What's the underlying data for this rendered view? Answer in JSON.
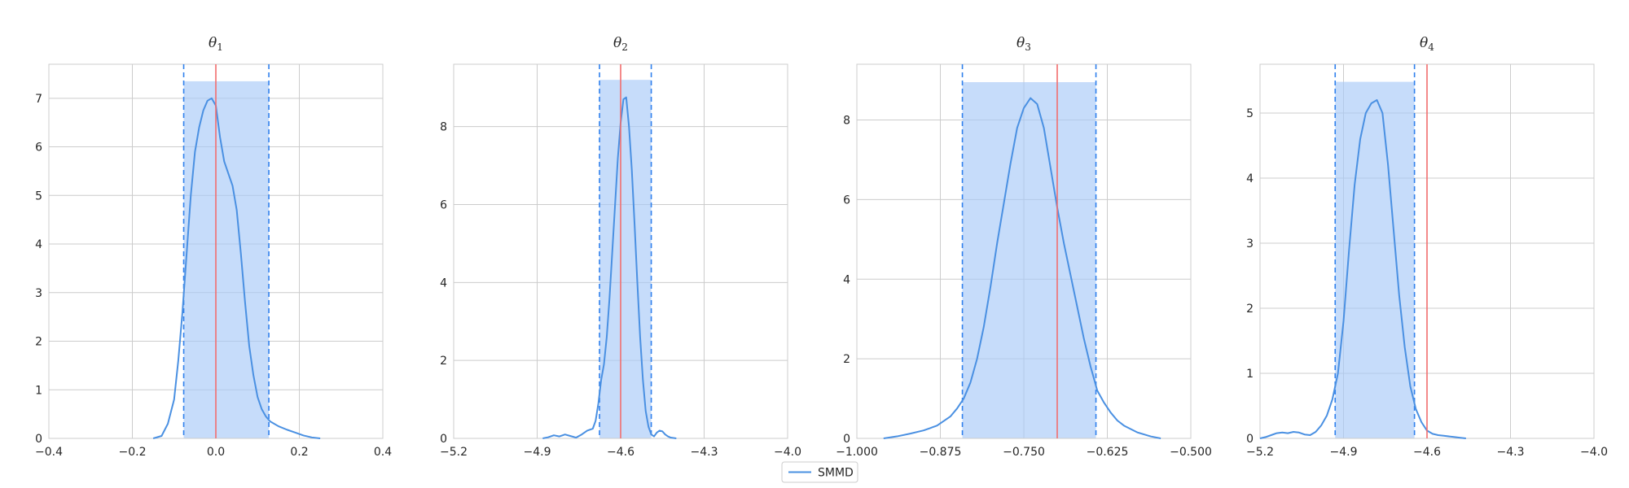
{
  "colors": {
    "kde": "#4a90e2",
    "interval_fill": "#a8c9f7",
    "interval_line": "#2f80ed",
    "truth": "#f26d6d",
    "grid": "#cccccc",
    "frame": "#cccccc"
  },
  "legend": {
    "label": "SMMD",
    "placement": "lower-center"
  },
  "chart_data": [
    {
      "type": "line",
      "title": "θ1",
      "title_var": "θ",
      "title_sub": "1",
      "xlim": [
        -0.4,
        0.4
      ],
      "ylim": [
        0,
        7.7
      ],
      "xticks": [
        -0.4,
        -0.2,
        0.0,
        0.2,
        0.4
      ],
      "xtick_labels": [
        "−0.4",
        "−0.2",
        "0.0",
        "0.2",
        "0.4"
      ],
      "yticks": [
        0,
        1,
        2,
        3,
        4,
        5,
        6,
        7
      ],
      "ytick_labels": [
        "0",
        "1",
        "2",
        "3",
        "4",
        "5",
        "6",
        "7"
      ],
      "grid": true,
      "interval": [
        -0.077,
        0.127
      ],
      "interval_height": 7.35,
      "true_value": 0.0,
      "series": [
        {
          "name": "SMMD",
          "x": [
            -0.15,
            -0.13,
            -0.115,
            -0.1,
            -0.09,
            -0.08,
            -0.07,
            -0.06,
            -0.05,
            -0.04,
            -0.03,
            -0.02,
            -0.01,
            0.0,
            0.01,
            0.02,
            0.03,
            0.04,
            0.05,
            0.06,
            0.07,
            0.08,
            0.09,
            0.1,
            0.11,
            0.12,
            0.13,
            0.15,
            0.17,
            0.19,
            0.21,
            0.23,
            0.25
          ],
          "y": [
            0.0,
            0.05,
            0.3,
            0.8,
            1.6,
            2.6,
            3.8,
            5.0,
            5.9,
            6.4,
            6.75,
            6.95,
            7.0,
            6.85,
            6.2,
            5.7,
            5.45,
            5.2,
            4.7,
            3.8,
            2.8,
            1.9,
            1.3,
            0.85,
            0.6,
            0.45,
            0.35,
            0.25,
            0.18,
            0.12,
            0.06,
            0.02,
            0.0
          ]
        }
      ]
    },
    {
      "type": "line",
      "title": "θ2",
      "title_var": "θ",
      "title_sub": "2",
      "xlim": [
        -5.2,
        -4.0
      ],
      "ylim": [
        0,
        9.6
      ],
      "xticks": [
        -5.2,
        -4.9,
        -4.6,
        -4.3,
        -4.0
      ],
      "xtick_labels": [
        "−5.2",
        "−4.9",
        "−4.6",
        "−4.3",
        "−4.0"
      ],
      "yticks": [
        0,
        2,
        4,
        6,
        8
      ],
      "ytick_labels": [
        "0",
        "2",
        "4",
        "6",
        "8"
      ],
      "grid": true,
      "interval": [
        -4.676,
        -4.49
      ],
      "interval_height": 9.2,
      "true_value": -4.6,
      "series": [
        {
          "name": "SMMD",
          "x": [
            -4.88,
            -4.86,
            -4.84,
            -4.82,
            -4.8,
            -4.78,
            -4.76,
            -4.74,
            -4.72,
            -4.7,
            -4.69,
            -4.68,
            -4.67,
            -4.66,
            -4.65,
            -4.64,
            -4.63,
            -4.62,
            -4.61,
            -4.6,
            -4.59,
            -4.58,
            -4.57,
            -4.56,
            -4.55,
            -4.54,
            -4.53,
            -4.52,
            -4.51,
            -4.5,
            -4.49,
            -4.48,
            -4.47,
            -4.46,
            -4.45,
            -4.44,
            -4.43,
            -4.42,
            -4.41,
            -4.4
          ],
          "y": [
            0.0,
            0.03,
            0.08,
            0.05,
            0.1,
            0.06,
            0.02,
            0.1,
            0.2,
            0.25,
            0.45,
            0.9,
            1.5,
            1.9,
            2.6,
            3.6,
            4.8,
            6.0,
            7.2,
            8.1,
            8.7,
            8.75,
            8.0,
            6.9,
            5.5,
            4.0,
            2.6,
            1.5,
            0.7,
            0.3,
            0.1,
            0.05,
            0.15,
            0.2,
            0.18,
            0.1,
            0.05,
            0.02,
            0.01,
            0.0
          ]
        }
      ]
    },
    {
      "type": "line",
      "title": "θ3",
      "title_var": "θ",
      "title_sub": "3",
      "xlim": [
        -1.0,
        -0.5
      ],
      "ylim": [
        0,
        9.4
      ],
      "xticks": [
        -1.0,
        -0.875,
        -0.75,
        -0.625,
        -0.5
      ],
      "xtick_labels": [
        "−1.000",
        "−0.875",
        "−0.750",
        "−0.625",
        "−0.500"
      ],
      "yticks": [
        0,
        2,
        4,
        6,
        8
      ],
      "ytick_labels": [
        "0",
        "2",
        "4",
        "6",
        "8"
      ],
      "grid": true,
      "interval": [
        -0.842,
        -0.642
      ],
      "interval_height": 8.95,
      "true_value": -0.7,
      "series": [
        {
          "name": "SMMD",
          "x": [
            -0.96,
            -0.94,
            -0.92,
            -0.9,
            -0.88,
            -0.86,
            -0.85,
            -0.84,
            -0.83,
            -0.82,
            -0.81,
            -0.8,
            -0.79,
            -0.78,
            -0.77,
            -0.76,
            -0.75,
            -0.74,
            -0.73,
            -0.72,
            -0.71,
            -0.7,
            -0.69,
            -0.68,
            -0.67,
            -0.66,
            -0.65,
            -0.64,
            -0.63,
            -0.62,
            -0.61,
            -0.6,
            -0.58,
            -0.56,
            -0.545
          ],
          "y": [
            0.0,
            0.05,
            0.12,
            0.2,
            0.32,
            0.55,
            0.75,
            1.0,
            1.4,
            2.0,
            2.8,
            3.8,
            4.9,
            5.9,
            6.9,
            7.8,
            8.3,
            8.55,
            8.4,
            7.8,
            6.8,
            5.8,
            4.9,
            4.1,
            3.3,
            2.5,
            1.8,
            1.2,
            0.9,
            0.65,
            0.45,
            0.32,
            0.15,
            0.05,
            0.0
          ]
        }
      ]
    },
    {
      "type": "line",
      "title": "θ4",
      "title_var": "θ",
      "title_sub": "4",
      "xlim": [
        -5.2,
        -4.0
      ],
      "ylim": [
        0,
        5.75
      ],
      "xticks": [
        -5.2,
        -4.9,
        -4.6,
        -4.3,
        -4.0
      ],
      "xtick_labels": [
        "−5.2",
        "−4.9",
        "−4.6",
        "−4.3",
        "−4.0"
      ],
      "yticks": [
        0,
        1,
        2,
        3,
        4,
        5
      ],
      "ytick_labels": [
        "0",
        "1",
        "2",
        "3",
        "4",
        "5"
      ],
      "grid": true,
      "interval": [
        -4.93,
        -4.645
      ],
      "interval_height": 5.48,
      "true_value": -4.6,
      "series": [
        {
          "name": "SMMD",
          "x": [
            -5.2,
            -5.18,
            -5.16,
            -5.14,
            -5.12,
            -5.1,
            -5.08,
            -5.06,
            -5.04,
            -5.02,
            -5.0,
            -4.98,
            -4.96,
            -4.94,
            -4.92,
            -4.9,
            -4.88,
            -4.86,
            -4.84,
            -4.82,
            -4.8,
            -4.78,
            -4.76,
            -4.74,
            -4.72,
            -4.7,
            -4.68,
            -4.66,
            -4.64,
            -4.62,
            -4.6,
            -4.58,
            -4.56,
            -4.54,
            -4.52,
            -4.5,
            -4.48,
            -4.46
          ],
          "y": [
            0.0,
            0.02,
            0.05,
            0.08,
            0.09,
            0.08,
            0.1,
            0.09,
            0.06,
            0.05,
            0.1,
            0.2,
            0.35,
            0.6,
            1.0,
            1.8,
            2.9,
            3.9,
            4.6,
            5.0,
            5.15,
            5.2,
            5.0,
            4.2,
            3.2,
            2.2,
            1.4,
            0.8,
            0.45,
            0.25,
            0.12,
            0.07,
            0.05,
            0.04,
            0.03,
            0.02,
            0.01,
            0.0
          ]
        }
      ]
    }
  ]
}
